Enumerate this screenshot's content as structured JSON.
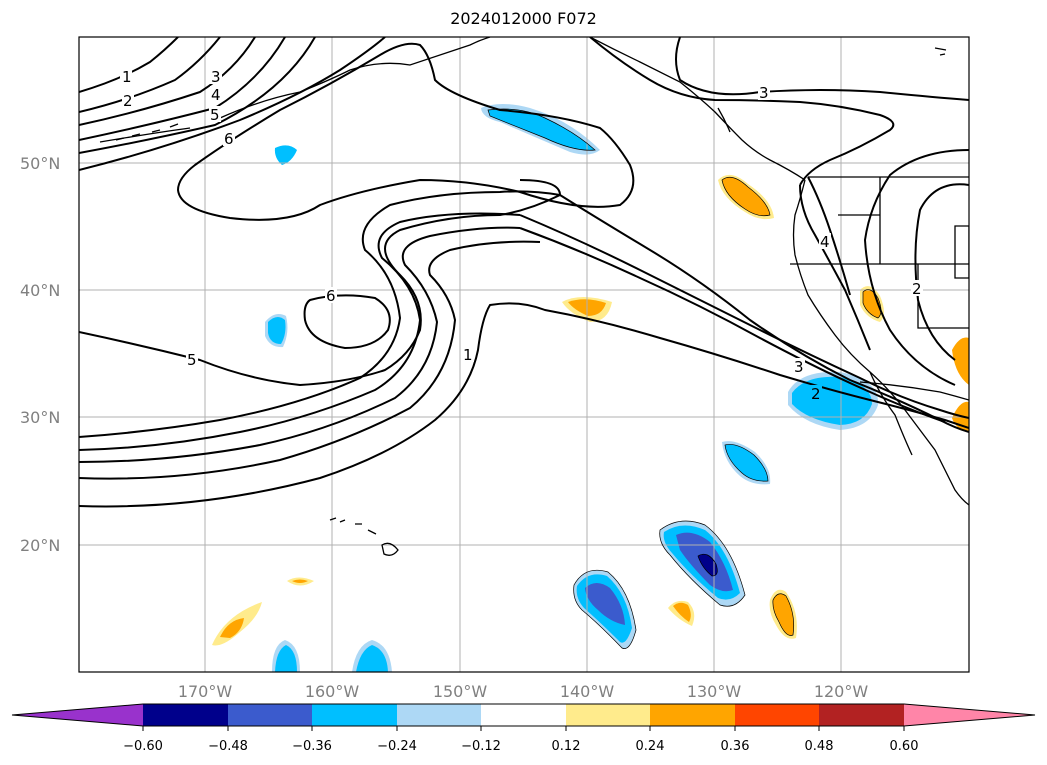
{
  "title": "2024012000 F072",
  "lat_labels": [
    "50°N",
    "40°N",
    "30°N",
    "20°N"
  ],
  "lon_labels": [
    "170°W",
    "160°W",
    "150°W",
    "140°W",
    "130°W",
    "120°W"
  ],
  "colorbar": {
    "ticks": [
      "−0.60",
      "−0.48",
      "−0.36",
      "−0.24",
      "−0.12",
      "0.12",
      "0.24",
      "0.36",
      "0.48",
      "0.60"
    ],
    "colors": [
      "#9932cc",
      "#00008b",
      "#3b5bcd",
      "#00bfff",
      "#add8f5",
      "#ffffff",
      "#ffeb8c",
      "#ffa500",
      "#ff4500",
      "#b22222",
      "#ff85a8"
    ]
  },
  "contour_labels": [
    "1",
    "2",
    "3",
    "4",
    "5",
    "6",
    "6",
    "5",
    "1",
    "3",
    "2",
    "3",
    "4",
    "2"
  ],
  "map_style": {
    "grid": "on",
    "land_outline": "#000000",
    "contour_color": "#000000"
  }
}
